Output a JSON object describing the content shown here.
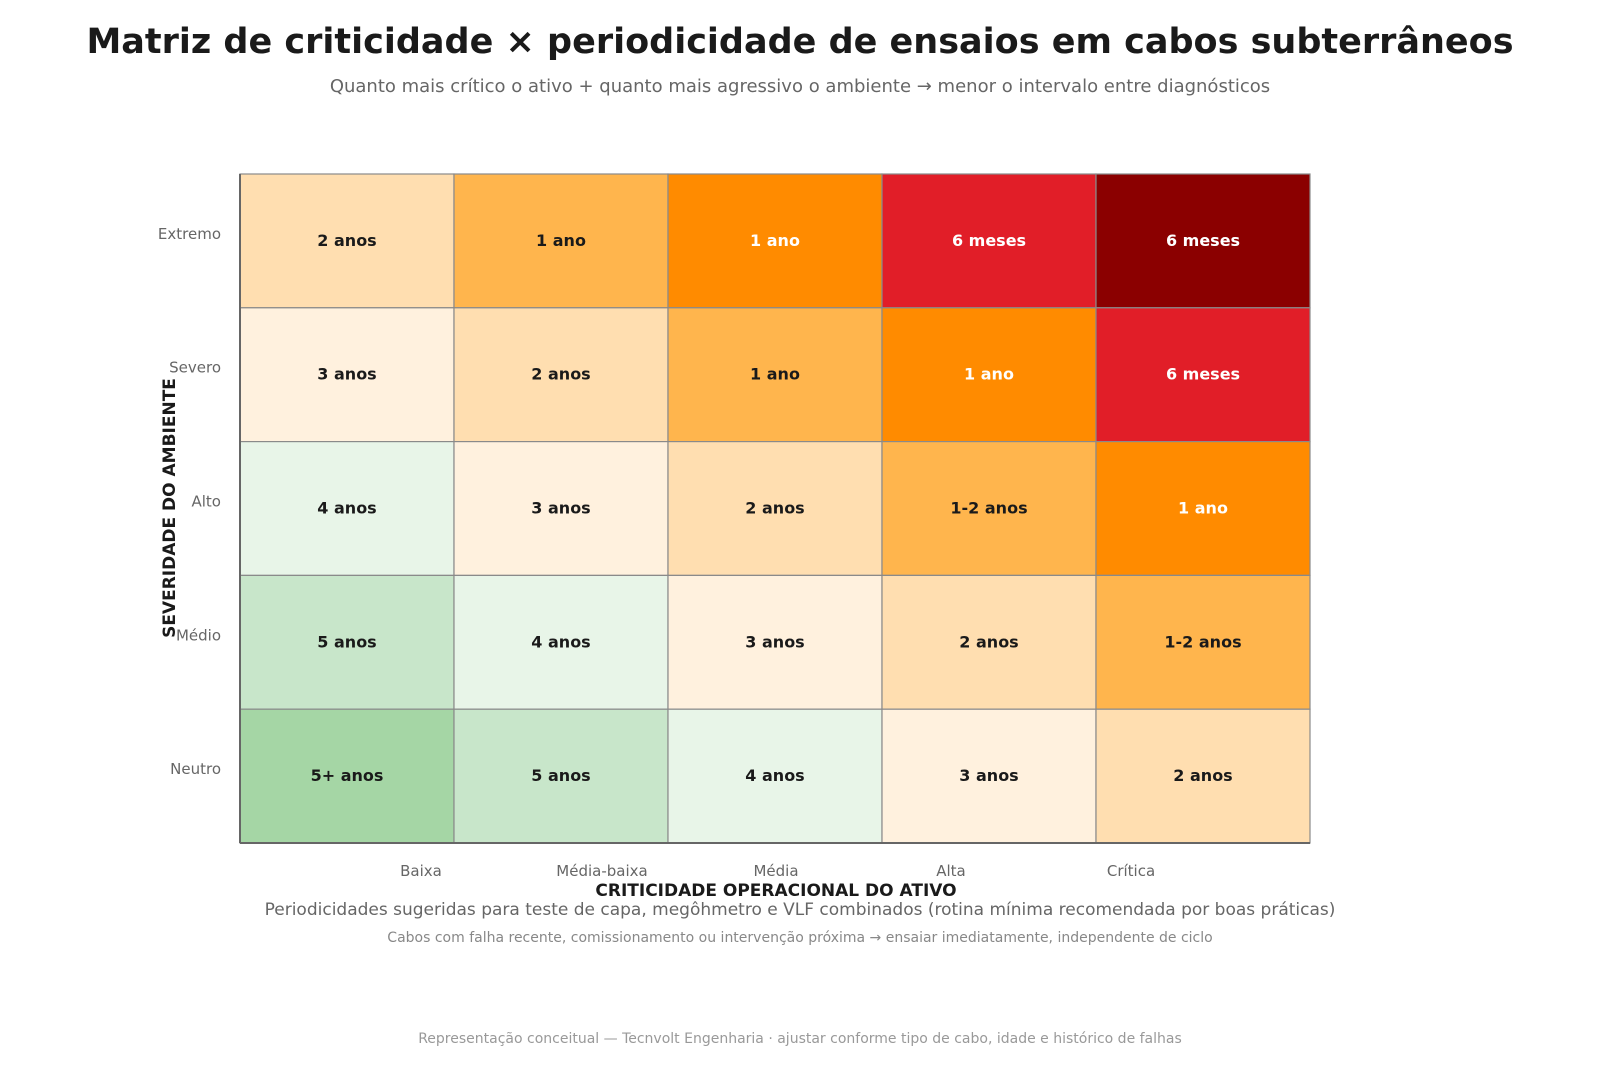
{
  "header": {
    "title": "Matriz de criticidade × periodicidade de ensaios em cabos subterrâneos",
    "subtitle": "Quanto mais crítico o ativo + quanto mais agressivo o ambiente → menor o intervalo entre diagnósticos"
  },
  "notes": {
    "line1": "Periodicidades sugeridas para teste de capa, megôhmetro e VLF combinados (rotina mínima recomendada por boas práticas)",
    "line2": "Cabos com falha recente, comissionamento ou intervenção próxima → ensaiar imediatamente, independente de ciclo"
  },
  "footer": "Representação conceitual — Tecnvolt Engenharia · ajustar conforme tipo de cabo, idade e histórico de falhas",
  "chart_data": {
    "type": "heatmap",
    "xlabel": "CRITICIDADE OPERACIONAL DO ATIVO",
    "ylabel": "SEVERIDADE DO AMBIENTE",
    "x_categories": [
      "Baixa",
      "Média-baixa",
      "Média",
      "Alta",
      "Crítica"
    ],
    "y_categories": [
      "Extremo",
      "Severo",
      "Alto",
      "Médio",
      "Neutro"
    ],
    "grid": true,
    "cells": [
      [
        {
          "label": "2 anos",
          "color": "#ffdeb0"
        },
        {
          "label": "1 ano",
          "color": "#ffb54d"
        },
        {
          "label": "1 ano",
          "color": "#ff8b00"
        },
        {
          "label": "6 meses",
          "color": "#e11e28"
        },
        {
          "label": "6 meses",
          "color": "#8b0000"
        }
      ],
      [
        {
          "label": "3 anos",
          "color": "#fff1de"
        },
        {
          "label": "2 anos",
          "color": "#ffdeb0"
        },
        {
          "label": "1 ano",
          "color": "#ffb54d"
        },
        {
          "label": "1 ano",
          "color": "#ff8b00"
        },
        {
          "label": "6 meses",
          "color": "#e11e28"
        }
      ],
      [
        {
          "label": "4 anos",
          "color": "#e8f5e8"
        },
        {
          "label": "3 anos",
          "color": "#fff1de"
        },
        {
          "label": "2 anos",
          "color": "#ffdeb0"
        },
        {
          "label": "1-2 anos",
          "color": "#ffb54d"
        },
        {
          "label": "1 ano",
          "color": "#ff8b00"
        }
      ],
      [
        {
          "label": "5 anos",
          "color": "#c8e6ca"
        },
        {
          "label": "4 anos",
          "color": "#e8f5e8"
        },
        {
          "label": "3 anos",
          "color": "#fff1de"
        },
        {
          "label": "2 anos",
          "color": "#ffdeb0"
        },
        {
          "label": "1-2 anos",
          "color": "#ffb54d"
        }
      ],
      [
        {
          "label": "5+ anos",
          "color": "#a5d6a5"
        },
        {
          "label": "5 anos",
          "color": "#c8e6ca"
        },
        {
          "label": "4 anos",
          "color": "#e8f5e8"
        },
        {
          "label": "3 anos",
          "color": "#fff1de"
        },
        {
          "label": "2 anos",
          "color": "#ffdeb0"
        }
      ]
    ],
    "dark_cell_colors": [
      "#ff8b00",
      "#e11e28",
      "#8b0000"
    ]
  }
}
